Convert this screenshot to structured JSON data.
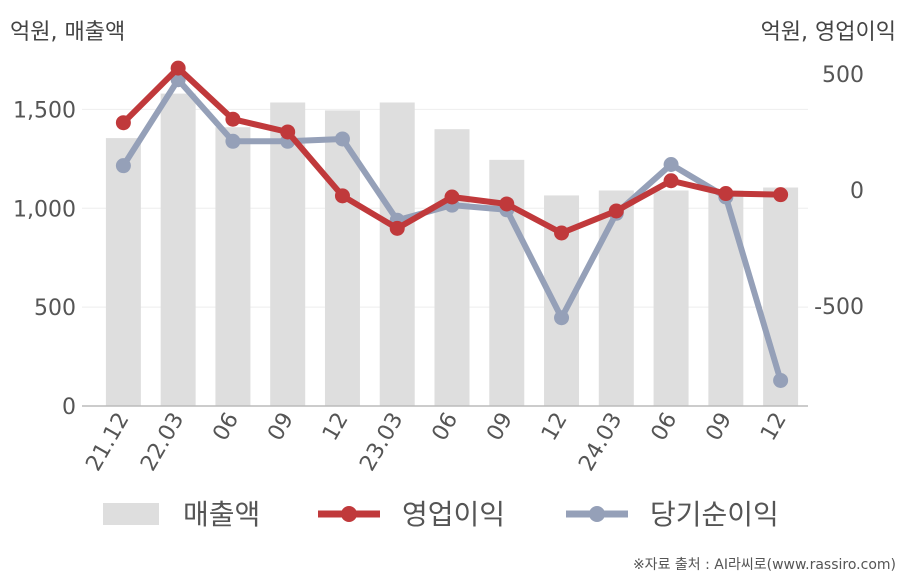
{
  "header": {
    "left_unit": "억원, 매출액",
    "right_unit": "억원, 영업이익"
  },
  "source": "※자료 출처 : AI라씨로(www.rassiro.com)",
  "chart_data": {
    "type": "bar",
    "categories": [
      "21.12",
      "22.03",
      "06",
      "09",
      "12",
      "23.03",
      "06",
      "09",
      "12",
      "24.03",
      "06",
      "09",
      "12"
    ],
    "left_axis": {
      "ylim": [
        0,
        1750
      ],
      "ticks": [
        0,
        500,
        1000,
        1500
      ],
      "tick_labels": [
        "0",
        "500",
        "1,000",
        "1,500"
      ]
    },
    "right_axis": {
      "ylim": [
        -930,
        560
      ],
      "ticks": [
        500,
        0,
        -500
      ],
      "tick_labels": [
        "500",
        "0",
        "-500"
      ]
    },
    "series": [
      {
        "name": "매출액",
        "type": "bar",
        "axis": "left",
        "color": "#dedede",
        "values": [
          1355,
          1580,
          1410,
          1535,
          1495,
          1535,
          1400,
          1245,
          1065,
          1090,
          1090,
          1090,
          1105
        ]
      },
      {
        "name": "영업이익",
        "type": "line",
        "axis": "right",
        "color": "#c0393b",
        "values": [
          290,
          525,
          305,
          250,
          -25,
          -165,
          -30,
          -60,
          -185,
          -90,
          40,
          -15,
          -20
        ]
      },
      {
        "name": "당기순이익",
        "type": "line",
        "axis": "right",
        "color": "#95a0b8",
        "values": [
          105,
          475,
          210,
          210,
          220,
          -130,
          -65,
          -85,
          -550,
          -100,
          110,
          -30,
          -820
        ]
      }
    ],
    "grid": true,
    "legend": "bottom"
  }
}
